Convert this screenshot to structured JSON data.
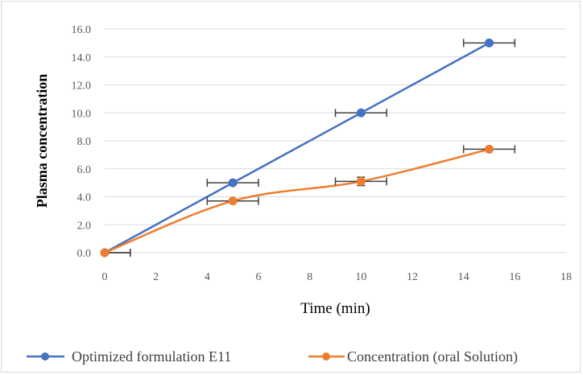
{
  "chart_data": {
    "type": "line",
    "xlabel": "Time (min)",
    "ylabel": "Plasma concentration",
    "xlim": [
      0,
      18
    ],
    "ylim": [
      0,
      16
    ],
    "x_ticks": [
      "0",
      "2",
      "4",
      "6",
      "8",
      "10",
      "12",
      "14",
      "16",
      "18"
    ],
    "y_ticks": [
      "0.0",
      "2.0",
      "4.0",
      "6.0",
      "8.0",
      "10.0",
      "12.0",
      "14.0",
      "16.0"
    ],
    "grid": "horizontal",
    "legend_position": "bottom",
    "series": [
      {
        "name": "Optimized formulation E11",
        "color": "#4472c4",
        "smooth": false,
        "x": [
          0,
          5,
          10,
          15
        ],
        "y": [
          0,
          5.0,
          10.0,
          15.0
        ],
        "x_error": [
          1,
          1,
          1,
          1
        ],
        "y_error": [
          0,
          0,
          0,
          0
        ]
      },
      {
        "name": "Concentration (oral Solution)",
        "color": "#ed7d31",
        "smooth": true,
        "x": [
          0,
          5,
          10,
          15
        ],
        "y": [
          0,
          3.7,
          5.1,
          7.4
        ],
        "x_error": [
          1,
          1,
          1,
          1
        ],
        "y_error": [
          0,
          0.1,
          0.3,
          0.1
        ]
      }
    ]
  }
}
